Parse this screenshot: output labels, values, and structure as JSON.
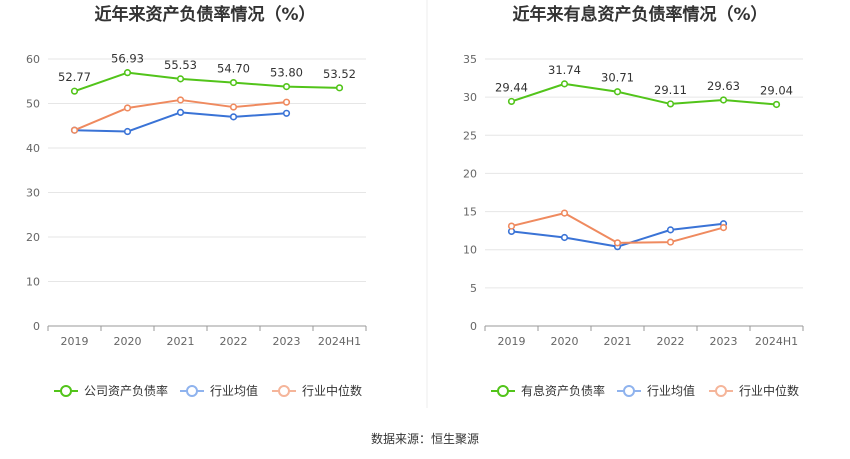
{
  "colors": {
    "company": "#52c41a",
    "avg": "#3a73d6",
    "median": "#ef8a5f",
    "grid": "#e6e6e6",
    "axis": "#999999",
    "legend_avg": "#8fb3ee",
    "legend_median": "#f5b59a"
  },
  "source_text": "数据来源：恒生聚源",
  "chart_data": [
    {
      "type": "line",
      "title": "近年来资产负债率情况（%）",
      "categories": [
        "2019",
        "2020",
        "2021",
        "2022",
        "2023",
        "2024H1"
      ],
      "ylim": [
        0,
        60
      ],
      "yticks": [
        "0",
        "10",
        "20",
        "30",
        "40",
        "50",
        "60"
      ],
      "grid": true,
      "legend_position": "bottom",
      "series": [
        {
          "name": "公司资产负债率",
          "color": "#52c41a",
          "values": [
            52.77,
            56.93,
            55.53,
            54.7,
            53.8,
            53.52
          ],
          "labels": [
            "52.77",
            "56.93",
            "55.53",
            "54.70",
            "53.80",
            "53.52"
          ]
        },
        {
          "name": "行业均值",
          "color": "#3a73d6",
          "values": [
            44.0,
            43.7,
            48.0,
            47.0,
            47.8,
            null
          ]
        },
        {
          "name": "行业中位数",
          "color": "#ef8a5f",
          "values": [
            44.0,
            49.0,
            50.8,
            49.2,
            50.3,
            null
          ]
        }
      ]
    },
    {
      "type": "line",
      "title": "近年来有息资产负债率情况（%）",
      "categories": [
        "2019",
        "2020",
        "2021",
        "2022",
        "2023",
        "2024H1"
      ],
      "ylim": [
        0,
        35
      ],
      "yticks": [
        "0",
        "5",
        "10",
        "15",
        "20",
        "25",
        "30",
        "35"
      ],
      "grid": true,
      "legend_position": "bottom",
      "series": [
        {
          "name": "有息资产负债率",
          "color": "#52c41a",
          "values": [
            29.44,
            31.74,
            30.71,
            29.11,
            29.63,
            29.04
          ],
          "labels": [
            "29.44",
            "31.74",
            "30.71",
            "29.11",
            "29.63",
            "29.04"
          ]
        },
        {
          "name": "行业均值",
          "color": "#3a73d6",
          "values": [
            12.4,
            11.6,
            10.4,
            12.6,
            13.4,
            null
          ]
        },
        {
          "name": "行业中位数",
          "color": "#ef8a5f",
          "values": [
            13.1,
            14.8,
            10.9,
            11.0,
            12.9,
            null
          ]
        }
      ]
    }
  ]
}
